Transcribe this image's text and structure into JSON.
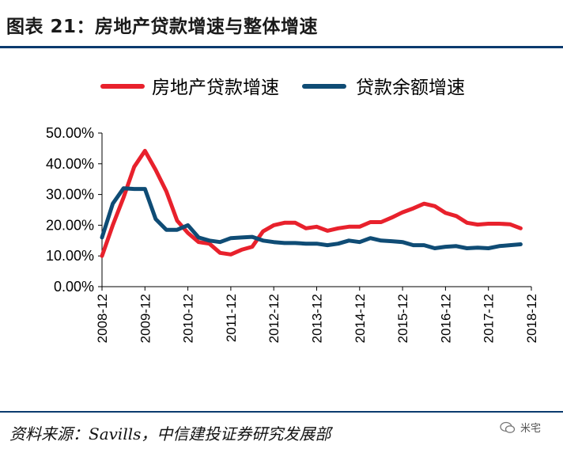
{
  "title": "图表 21：房地产贷款增速与整体增速",
  "source": "资料来源：Savills，中信建投证券研究发展部",
  "watermark": "米宅",
  "colors": {
    "red": "#e8212c",
    "blue": "#0f4c75",
    "rule": "#0b3a6e"
  },
  "chart_data": {
    "type": "line",
    "xlabel": "",
    "ylabel": "",
    "ylim": [
      0,
      50
    ],
    "y_ticks": [
      "0.00%",
      "10.00%",
      "20.00%",
      "30.00%",
      "40.00%",
      "50.00%"
    ],
    "x_ticks": [
      "2008-12",
      "2009-12",
      "2010-12",
      "2011-12",
      "2012-12",
      "2013-12",
      "2014-12",
      "2015-12",
      "2016-12",
      "2017-12",
      "2018-12"
    ],
    "legend_placement": "top",
    "grid": false,
    "series": [
      {
        "name": "房地产贷款增速",
        "color": "#e8212c",
        "points": [
          [
            2008.92,
            10.0
          ],
          [
            2009.17,
            20.0
          ],
          [
            2009.42,
            29.0
          ],
          [
            2009.67,
            39.0
          ],
          [
            2009.92,
            44.2
          ],
          [
            2010.17,
            38.0
          ],
          [
            2010.42,
            31.0
          ],
          [
            2010.67,
            21.5
          ],
          [
            2010.92,
            17.5
          ],
          [
            2011.17,
            14.5
          ],
          [
            2011.42,
            14.0
          ],
          [
            2011.67,
            11.0
          ],
          [
            2011.92,
            10.5
          ],
          [
            2012.17,
            12.0
          ],
          [
            2012.42,
            13.0
          ],
          [
            2012.67,
            18.0
          ],
          [
            2012.92,
            20.0
          ],
          [
            2013.17,
            20.8
          ],
          [
            2013.42,
            20.8
          ],
          [
            2013.67,
            19.0
          ],
          [
            2013.92,
            19.5
          ],
          [
            2014.17,
            18.2
          ],
          [
            2014.42,
            19.0
          ],
          [
            2014.67,
            19.5
          ],
          [
            2014.92,
            19.5
          ],
          [
            2015.17,
            21.0
          ],
          [
            2015.42,
            21.0
          ],
          [
            2015.67,
            22.5
          ],
          [
            2015.92,
            24.2
          ],
          [
            2016.17,
            25.5
          ],
          [
            2016.42,
            27.0
          ],
          [
            2016.67,
            26.2
          ],
          [
            2016.92,
            24.0
          ],
          [
            2017.17,
            23.0
          ],
          [
            2017.42,
            20.8
          ],
          [
            2017.67,
            20.2
          ],
          [
            2017.92,
            20.5
          ],
          [
            2018.17,
            20.5
          ],
          [
            2018.42,
            20.3
          ],
          [
            2018.67,
            19.0
          ]
        ]
      },
      {
        "name": "贷款余额增速",
        "color": "#0f4c75",
        "points": [
          [
            2008.92,
            16.0
          ],
          [
            2009.17,
            27.0
          ],
          [
            2009.42,
            32.0
          ],
          [
            2009.67,
            31.8
          ],
          [
            2009.92,
            31.8
          ],
          [
            2010.17,
            22.0
          ],
          [
            2010.42,
            18.5
          ],
          [
            2010.67,
            18.5
          ],
          [
            2010.92,
            20.0
          ],
          [
            2011.17,
            16.0
          ],
          [
            2011.42,
            15.0
          ],
          [
            2011.67,
            14.5
          ],
          [
            2011.92,
            15.8
          ],
          [
            2012.17,
            16.0
          ],
          [
            2012.42,
            16.2
          ],
          [
            2012.67,
            15.0
          ],
          [
            2012.92,
            14.5
          ],
          [
            2013.17,
            14.2
          ],
          [
            2013.42,
            14.2
          ],
          [
            2013.67,
            14.0
          ],
          [
            2013.92,
            14.0
          ],
          [
            2014.17,
            13.5
          ],
          [
            2014.42,
            14.0
          ],
          [
            2014.67,
            15.0
          ],
          [
            2014.92,
            14.5
          ],
          [
            2015.17,
            15.8
          ],
          [
            2015.42,
            15.0
          ],
          [
            2015.67,
            14.8
          ],
          [
            2015.92,
            14.5
          ],
          [
            2016.17,
            13.5
          ],
          [
            2016.42,
            13.5
          ],
          [
            2016.67,
            12.5
          ],
          [
            2016.92,
            13.0
          ],
          [
            2017.17,
            13.2
          ],
          [
            2017.42,
            12.5
          ],
          [
            2017.67,
            12.7
          ],
          [
            2017.92,
            12.5
          ],
          [
            2018.17,
            13.2
          ],
          [
            2018.42,
            13.5
          ],
          [
            2018.67,
            13.8
          ]
        ]
      }
    ]
  }
}
